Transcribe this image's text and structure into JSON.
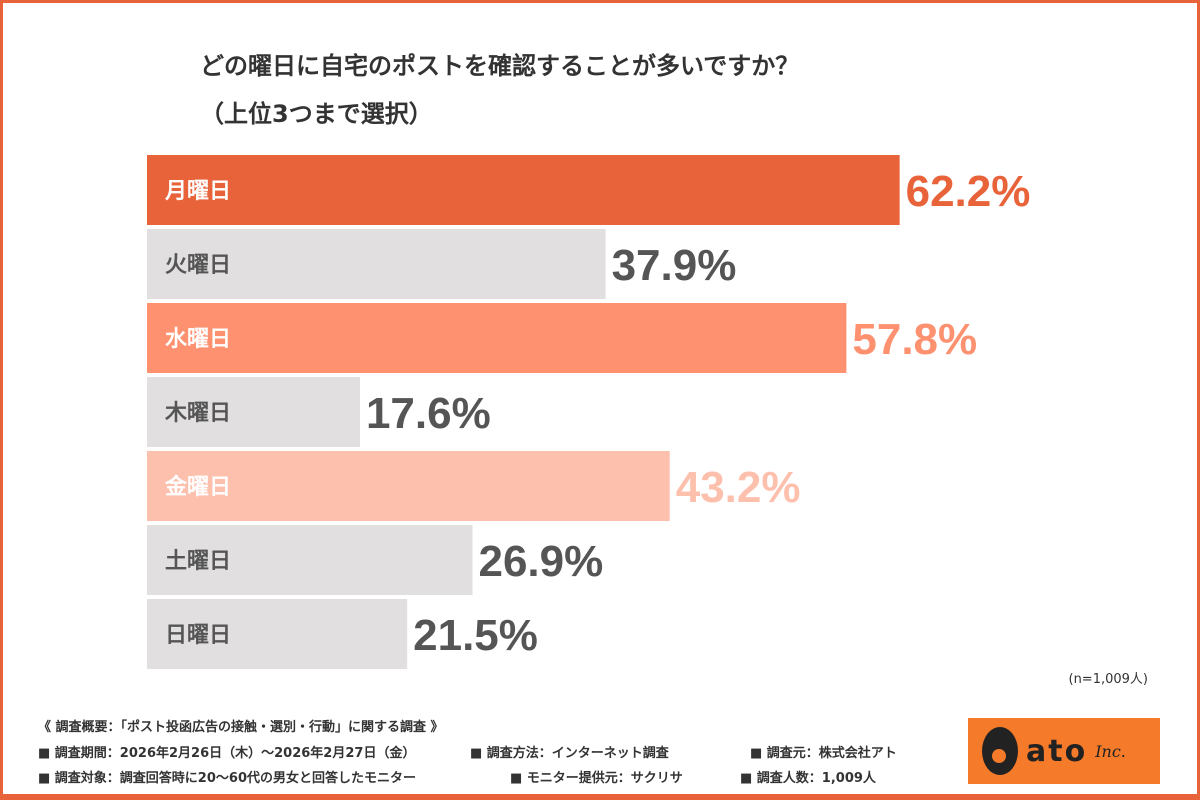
{
  "title_line1": "どの曜日に自宅のポストを確認することが多いですか？",
  "title_line2": "（上位3つまで選択）",
  "chart_data": {
    "type": "bar",
    "orientation": "horizontal",
    "categories": [
      "月曜日",
      "火曜日",
      "水曜日",
      "木曜日",
      "金曜日",
      "土曜日",
      "日曜日"
    ],
    "values": [
      62.2,
      37.9,
      57.8,
      17.6,
      43.2,
      26.9,
      21.5
    ],
    "value_labels": [
      "62.2%",
      "37.9%",
      "57.8%",
      "17.6%",
      "43.2%",
      "26.9%",
      "21.5%"
    ],
    "unit": "%",
    "xlim": [
      0,
      100
    ],
    "colors": [
      "#e8633a",
      "#e1dfdf",
      "#fd9170",
      "#e1dfdf",
      "#fcc0ad",
      "#e1dfdf",
      "#e1dfdf"
    ],
    "value_colors": [
      "#e8633a",
      "#555555",
      "#fd9170",
      "#555555",
      "#fcc0ad",
      "#555555",
      "#555555"
    ],
    "grid": false
  },
  "sample_note": "(n=1,009人)",
  "footer": {
    "line1": "《 調査概要：「ポスト投函広告の接触・選別・行動」に関する調査 》",
    "period": "■ 調査期間：2026年2月26日（木）～2026年2月27日（金）",
    "method": "■ 調査方法：インターネット調査",
    "source": "■ 調査元：株式会社アト",
    "target": "■ 調査対象：調査回答時に20～60代の男女と回答したモニター",
    "provider": "■ モニター提供元：サクリサ",
    "count": "■ 調査人数：1,009人"
  },
  "logo": {
    "text": "ato",
    "inc": "Inc.",
    "bg": "#f57a2a"
  }
}
